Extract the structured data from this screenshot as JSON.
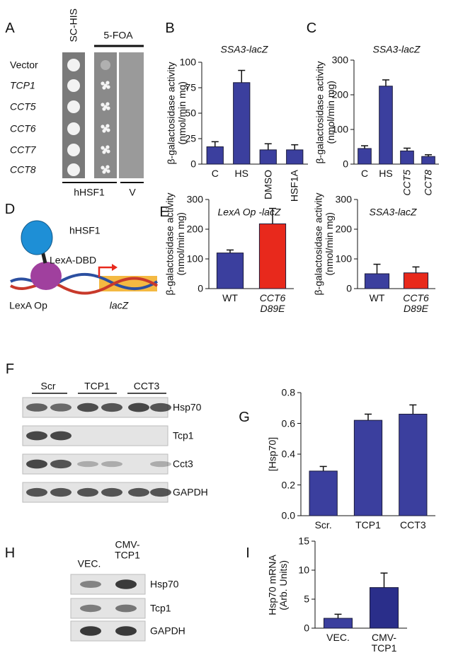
{
  "panel_labels": [
    "A",
    "B",
    "C",
    "D",
    "E",
    "F",
    "G",
    "H",
    "I"
  ],
  "panel_a": {
    "columns": [
      "SC-HIS",
      "5-FOA"
    ],
    "rows": [
      "Vector",
      "TCP1",
      "CCT5",
      "CCT6",
      "CCT7",
      "CCT8"
    ],
    "footer": [
      "hHSF1",
      "V"
    ]
  },
  "panel_d": {
    "labels": [
      "hHSF1",
      "LexA-DBD",
      "LexA Op",
      "lacZ"
    ]
  },
  "panel_f": {
    "groups": [
      "Scr",
      "TCP1",
      "CCT3"
    ],
    "bands": [
      "Hsp70",
      "Tcp1",
      "Cct3",
      "GAPDH"
    ]
  },
  "panel_h": {
    "lanes": [
      "VEC.",
      "CMV-\nTCP1"
    ],
    "bands": [
      "Hsp70",
      "Tcp1",
      "GAPDH"
    ]
  },
  "chart_data": [
    {
      "type": "bar",
      "title": "SSA3-lacZ",
      "y_label": "β-galactosidase activity\n(nmol/min mg)",
      "categories": [
        "C",
        "HS",
        "DMSO",
        "HSF1A"
      ],
      "values": [
        17,
        80,
        14,
        14
      ],
      "errors": [
        5,
        12,
        6,
        5
      ],
      "colors": [
        "#3b3f9e",
        "#3b3f9e",
        "#3b3f9e",
        "#3b3f9e"
      ],
      "ylim": [
        0,
        100
      ],
      "yticks": [
        0,
        25,
        50,
        75,
        100
      ]
    },
    {
      "type": "bar",
      "title": "SSA3-lacZ",
      "y_label": "β-galactosidase activity\n(nmol/min mg)",
      "categories": [
        "C",
        "HS",
        "CCT5",
        "CCT8"
      ],
      "values": [
        45,
        225,
        38,
        22
      ],
      "errors": [
        8,
        18,
        8,
        5
      ],
      "colors": [
        "#3b3f9e",
        "#3b3f9e",
        "#3b3f9e",
        "#3b3f9e"
      ],
      "ylim": [
        0,
        300
      ],
      "yticks": [
        0,
        100,
        200,
        300
      ]
    },
    {
      "type": "bar",
      "title": "LexA Op -lacZ",
      "y_label": "β-galactosidase activity\n(nmol/min mg)",
      "categories": [
        "WT",
        "CCT6\nD89E"
      ],
      "values": [
        120,
        218
      ],
      "errors": [
        10,
        52
      ],
      "colors": [
        "#3b3f9e",
        "#e8291c"
      ],
      "ylim": [
        0,
        300
      ],
      "yticks": [
        0,
        100,
        200,
        300
      ]
    },
    {
      "type": "bar",
      "title": "SSA3-lacZ",
      "y_label": "β-galactosidase activity\n(nmol/min mg)",
      "categories": [
        "WT",
        "CCT6\nD89E"
      ],
      "values": [
        50,
        53
      ],
      "errors": [
        32,
        20
      ],
      "colors": [
        "#3b3f9e",
        "#e8291c"
      ],
      "ylim": [
        0,
        300
      ],
      "yticks": [
        0,
        100,
        200,
        300
      ]
    },
    {
      "type": "bar",
      "y_label": "[Hsp70]",
      "categories": [
        "Scr.",
        "TCP1",
        "CCT3"
      ],
      "values": [
        0.29,
        0.62,
        0.66
      ],
      "errors": [
        0.03,
        0.04,
        0.06
      ],
      "colors": [
        "#3b3f9e",
        "#3b3f9e",
        "#3b3f9e"
      ],
      "ylim": [
        0,
        0.8
      ],
      "yticks": [
        {
          "value": 0,
          "label": "0.0"
        },
        0.2,
        0.4,
        0.6,
        0.8
      ]
    },
    {
      "type": "bar",
      "y_label": "Hsp70 mRNA\n(Arb. Units)",
      "categories": [
        "VEC.",
        "CMV-\nTCP1"
      ],
      "values": [
        1.7,
        7
      ],
      "errors": [
        0.7,
        2.5
      ],
      "colors": [
        "#3b3f9e",
        "#2a2e8a"
      ],
      "ylim": [
        0,
        15
      ],
      "yticks": [
        0,
        5,
        10,
        15
      ]
    }
  ]
}
